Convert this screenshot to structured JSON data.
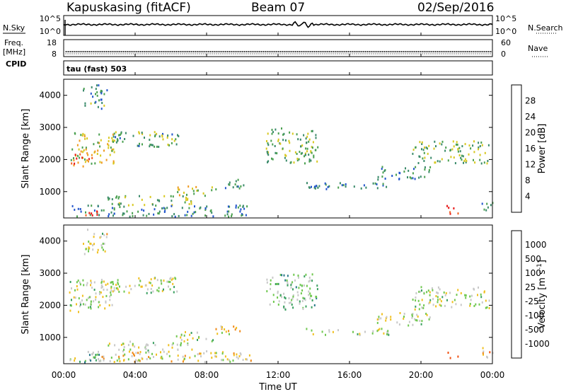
{
  "header": {
    "station": "Kapuskasing (fitACF)",
    "beam": "Beam 07",
    "date": "02/Sep/2016"
  },
  "left_labels": {
    "nsky": "N.Sky",
    "freq": "Freq.",
    "freq_unit": "[MHz]",
    "cpid": "CPID"
  },
  "right_labels": {
    "nsearch": "N.Search",
    "nave": "Nave"
  },
  "mode_label": "tau (fast) 503",
  "x_axis": {
    "label": "Time UT",
    "ticks": [
      "00:00",
      "04:00",
      "08:00",
      "12:00",
      "16:00",
      "20:00",
      "00:00"
    ]
  },
  "colors": {
    "background": "#ffffff",
    "axis": "#000000",
    "ground_scatter": "#bdbdbd"
  },
  "chart_data": [
    {
      "type": "line",
      "name": "noise",
      "left_axis_ticks": [
        "10^5",
        "10^0"
      ],
      "right_axis_ticks": [
        "10^5",
        "10^0"
      ],
      "description_series": [
        "N.Sky",
        "N.Search"
      ],
      "x_range_hours": [
        0,
        24
      ],
      "level_fraction": 0.55
    },
    {
      "type": "line",
      "name": "frequency_nave",
      "left_axis_ticks": [
        "18",
        "8"
      ],
      "right_axis_ticks": [
        "60",
        "0"
      ],
      "freq_level": 9,
      "nave_level": 8
    },
    {
      "type": "heatmap",
      "quantity": "power",
      "ylabel": "Slant Range [km]",
      "yticks": [
        1000,
        2000,
        3000,
        4000
      ],
      "ylim": [
        180,
        4500
      ],
      "xlim_hours": [
        0,
        24
      ],
      "colorbar": {
        "label": "Power [dB]",
        "ticks": [
          "4",
          "8",
          "12",
          "16",
          "20",
          "24",
          "28"
        ],
        "colors": [
          "#1a1aff",
          "#2255cc",
          "#3a8a6a",
          "#4aa050",
          "#d8c820",
          "#f09a20",
          "#f06020",
          "#e81818"
        ]
      },
      "regions": [
        {
          "t0": 0.3,
          "t1": 2.8,
          "r0": 1900,
          "r1": 2900,
          "level": 0.55
        },
        {
          "t0": 0.3,
          "t1": 1.6,
          "r0": 1800,
          "r1": 2200,
          "level": 0.8
        },
        {
          "t0": 1.0,
          "t1": 2.4,
          "r0": 3600,
          "r1": 4400,
          "level": 0.35
        },
        {
          "t0": 2.6,
          "t1": 6.4,
          "r0": 2400,
          "r1": 2900,
          "level": 0.4
        },
        {
          "t0": 2.4,
          "t1": 7.2,
          "r0": 600,
          "r1": 900,
          "level": 0.45
        },
        {
          "t0": 6.2,
          "t1": 8.4,
          "r0": 900,
          "r1": 1200,
          "level": 0.55
        },
        {
          "t0": 8.4,
          "t1": 10.2,
          "r0": 1100,
          "r1": 1400,
          "level": 0.35
        },
        {
          "t0": 0.3,
          "t1": 10.5,
          "r0": 250,
          "r1": 600,
          "level": 0.3
        },
        {
          "t0": 0.8,
          "t1": 2.0,
          "r0": 250,
          "r1": 500,
          "level": 0.95
        },
        {
          "t0": 11.3,
          "t1": 14.2,
          "r0": 1900,
          "r1": 3000,
          "level": 0.45
        },
        {
          "t0": 13.5,
          "t1": 18.2,
          "r0": 1100,
          "r1": 1300,
          "level": 0.3
        },
        {
          "t0": 17.5,
          "t1": 20.5,
          "r0": 1400,
          "r1": 1800,
          "level": 0.3
        },
        {
          "t0": 19.5,
          "t1": 23.8,
          "r0": 1900,
          "r1": 2600,
          "level": 0.45
        },
        {
          "t0": 21.4,
          "t1": 22.1,
          "r0": 300,
          "r1": 600,
          "level": 0.9
        },
        {
          "t0": 23.3,
          "t1": 24.0,
          "r0": 400,
          "r1": 700,
          "level": 0.4
        }
      ]
    },
    {
      "type": "heatmap",
      "quantity": "velocity",
      "ylabel": "Slant Range [km]",
      "yticks": [
        1000,
        2000,
        3000,
        4000
      ],
      "ylim": [
        180,
        4500
      ],
      "xlim_hours": [
        0,
        24
      ],
      "colorbar": {
        "label": "Velocity [m s-1]",
        "ticks": [
          "1000",
          "500",
          "100",
          "25",
          "-25",
          "-100",
          "-500",
          "-1000"
        ],
        "colors": [
          "#1a3acc",
          "#2a7a8a",
          "#3aa060",
          "#70c850",
          "#c8c8c8",
          "#f0c020",
          "#f08a18",
          "#f05010",
          "#e81010"
        ]
      },
      "regions": [
        {
          "t0": 0.3,
          "t1": 2.8,
          "r0": 1900,
          "r1": 2900,
          "level": 0.48
        },
        {
          "t0": 0.3,
          "t1": 1.6,
          "r0": 1800,
          "r1": 2200,
          "level": 0.45
        },
        {
          "t0": 1.0,
          "t1": 2.4,
          "r0": 3600,
          "r1": 4400,
          "level": 0.5
        },
        {
          "t0": 2.6,
          "t1": 6.4,
          "r0": 2400,
          "r1": 2900,
          "level": 0.47
        },
        {
          "t0": 2.4,
          "t1": 7.2,
          "r0": 600,
          "r1": 900,
          "level": 0.48
        },
        {
          "t0": 6.2,
          "t1": 8.4,
          "r0": 900,
          "r1": 1200,
          "level": 0.48
        },
        {
          "t0": 8.4,
          "t1": 10.2,
          "r0": 1100,
          "r1": 1400,
          "level": 0.6
        },
        {
          "t0": 0.3,
          "t1": 10.5,
          "r0": 250,
          "r1": 600,
          "level": 0.55
        },
        {
          "t0": 0.8,
          "t1": 2.0,
          "r0": 250,
          "r1": 500,
          "level": 0.3
        },
        {
          "t0": 11.3,
          "t1": 14.2,
          "r0": 1900,
          "r1": 3000,
          "level": 0.38
        },
        {
          "t0": 13.5,
          "t1": 18.2,
          "r0": 1100,
          "r1": 1300,
          "level": 0.48
        },
        {
          "t0": 17.5,
          "t1": 20.5,
          "r0": 1400,
          "r1": 1800,
          "level": 0.48
        },
        {
          "t0": 19.5,
          "t1": 23.8,
          "r0": 1900,
          "r1": 2600,
          "level": 0.47
        },
        {
          "t0": 21.4,
          "t1": 22.1,
          "r0": 300,
          "r1": 600,
          "level": 0.72
        },
        {
          "t0": 23.3,
          "t1": 24.0,
          "r0": 400,
          "r1": 700,
          "level": 0.62
        }
      ]
    }
  ]
}
